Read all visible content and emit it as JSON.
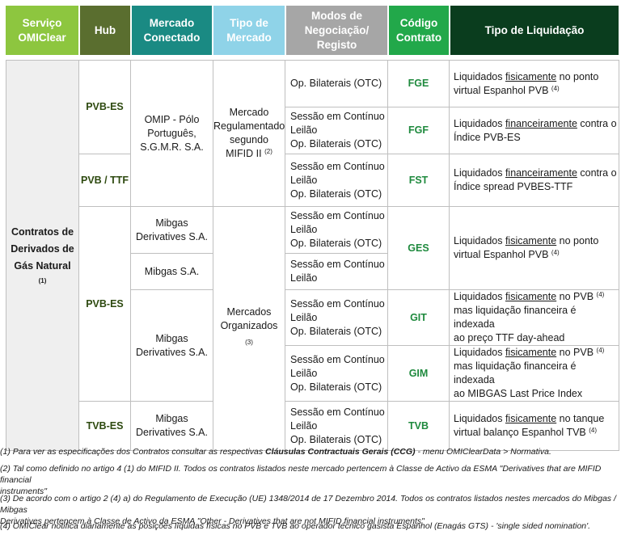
{
  "headers": {
    "servico": [
      "Serviço",
      "OMIClear"
    ],
    "hub": "Hub",
    "mercado": [
      "Mercado",
      "Conectado"
    ],
    "tipo": [
      "Tipo de",
      "Mercado"
    ],
    "modos": [
      "Modos de",
      "Negociação/",
      "Registo"
    ],
    "codigo": [
      "Código",
      "Contrato"
    ],
    "liquidacao": "Tipo de Liquidação"
  },
  "colors": {
    "servico_header": "#8dc63f",
    "hub_header": "#5a6e2f",
    "mercado_header": "#1a8a83",
    "tipo_header": "#8fd3e8",
    "modos_header": "#a6a6a6",
    "codigo_header": "#22a84a",
    "liquidacao_header": "#0a3d1e"
  },
  "servico": {
    "label": [
      "Contratos de",
      "Derivados de",
      "Gás Natural"
    ],
    "note": "(1)"
  },
  "hubs": {
    "h1": "PVB-ES",
    "h2": "PVB / TTF",
    "h3": "PVB-ES",
    "h4": "TVB-ES"
  },
  "mercados": {
    "m1": [
      "OMIP - Pólo",
      "Português,",
      "S.G.M.R. S.A."
    ],
    "m2": [
      "Mibgas",
      "Derivatives S.A."
    ],
    "m3": "Mibgas S.A.",
    "m4": [
      "Mibgas",
      "Derivatives S.A."
    ],
    "m5": [
      "Mibgas",
      "Derivatives S.A."
    ]
  },
  "tipos": {
    "t1": [
      "Mercado",
      "Regulamentado",
      "segundo",
      "MIFID II"
    ],
    "t1_sup": "(2)",
    "t2": [
      "Mercados",
      "Organizados"
    ],
    "t2_note": "(3)"
  },
  "modos": {
    "r1": [
      "Op. Bilaterais (OTC)"
    ],
    "r2": [
      "Sessão em Contínuo",
      "Leilão",
      "Op. Bilaterais (OTC)"
    ],
    "r3": [
      "Sessão em Contínuo",
      "Leilão",
      "Op. Bilaterais (OTC)"
    ],
    "r4": [
      "Sessão em Contínuo",
      "Leilão",
      "Op. Bilaterais (OTC)"
    ],
    "r5": [
      "Sessão em Contínuo",
      "Leilão"
    ],
    "r6": [
      "Sessão em Contínuo",
      "Leilão",
      "Op. Bilaterais (OTC)"
    ],
    "r7": [
      "Sessão em Contínuo",
      "Leilão",
      "Op. Bilaterais (OTC)"
    ],
    "r8": [
      "Sessão em Contínuo",
      "Leilão",
      "Op. Bilaterais (OTC)"
    ]
  },
  "codigos": {
    "c1": "FGE",
    "c2": "FGF",
    "c3": "FST",
    "c4": "GES",
    "c5": "GIT",
    "c6": "GIM",
    "c7": "TVB"
  },
  "liquidacao": {
    "l1": {
      "a": "Liquidados ",
      "u": "fisicamente",
      "b": " no ponto",
      "c": "virtual Espanhol PVB ",
      "sup": "(4)"
    },
    "l2": {
      "a": "Liquidados ",
      "u": "financeiramente",
      "b": " contra o",
      "c": "Índice PVB-ES"
    },
    "l3": {
      "a": "Liquidados ",
      "u": "financeiramente",
      "b": " contra o",
      "c": "Índice spread PVBES-TTF"
    },
    "l4": {
      "a": "Liquidados ",
      "u": "fisicamente",
      "b": " no ponto",
      "c": "virtual Espanhol PVB ",
      "sup": "(4)"
    },
    "l5": {
      "a": "Liquidados ",
      "u": "fisicamente",
      "b": " no PVB ",
      "sup": "(4)",
      "c": "mas liquidação financeira é indexada",
      "d": "ao preço TTF day-ahead"
    },
    "l6": {
      "a": "Liquidados ",
      "u": "fisicamente",
      "b": " no PVB ",
      "sup": "(4)",
      "c": "mas liquidação financeira é indexada",
      "d": "ao MIBGAS Last Price Index"
    },
    "l7": {
      "a": "Liquidados ",
      "u": "fisicamente",
      "b": " no tanque",
      "c": "virtual balanço Espanhol TVB ",
      "sup": "(4)"
    }
  },
  "notes": {
    "n1a": "(1) Para ver as especificações dos Contratos consultar as respectivas ",
    "n1b": "Cláusulas Contractuais Gerais (CCG)",
    "n1c": " - menu OMIClearData > Normativa.",
    "n2": [
      "(2) Tal como definido no artigo 4 (1) do MIFID II. Todos os contratos listados neste mercado pertencem à Classe de Activo da ESMA \"Derivatives that are MIFID financial",
      "instruments\""
    ],
    "n3": [
      "(3) De acordo com o artigo 2 (4) a) do Regulamento de Execução (UE) 1348/2014 de 17 Dezembro 2014. Todos os contratos listados nestes mercados do Mibgas / Mibgas",
      "Derivatives pertencem à Classe de Activo da ESMA \"Other - Derivatives that are not MIFID financial instruments\""
    ],
    "n4": "(4) OMIClear notifica diariamente as posições líquidas físicas no PVB e TVB ao operador técnico gasista Espanhol (Enagás GTS) - 'single sided nomination'."
  }
}
